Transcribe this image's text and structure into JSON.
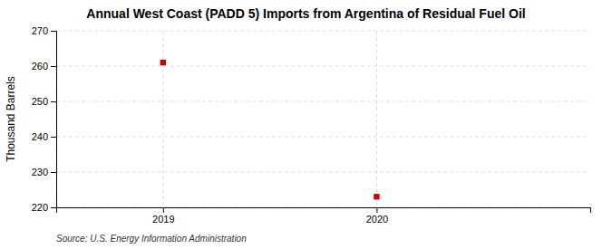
{
  "chart_data": {
    "type": "scatter",
    "title": "Annual West Coast (PADD 5) Imports from Argentina of Residual Fuel Oil",
    "y_label": "Thousand Barrels",
    "annotations": [
      "Source: U.S. Energy Information Administration"
    ],
    "x": [
      2019,
      2020
    ],
    "values": [
      261,
      223
    ],
    "color": "#cc0000",
    "marker": "square",
    "xlim": [
      2018.5,
      2021.0
    ],
    "xticks": [
      2019,
      2020
    ],
    "ylim": [
      220,
      270
    ],
    "yticks": [
      220,
      230,
      240,
      250,
      260,
      270
    ],
    "grid": true
  }
}
